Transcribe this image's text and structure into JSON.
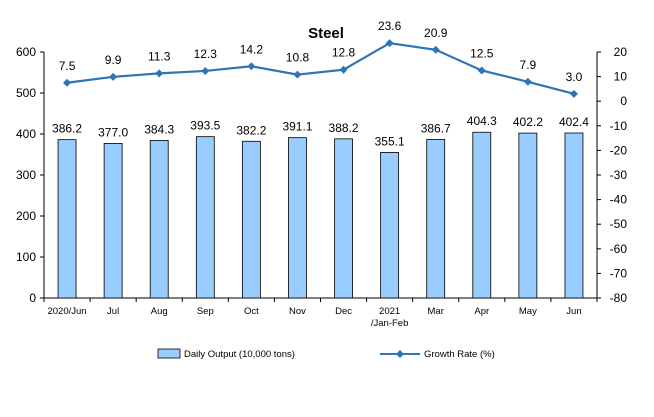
{
  "chart_data": {
    "type": "bar+line",
    "title": "Steel",
    "categories": [
      "2020/Jun",
      "Jul",
      "Aug",
      "Sep",
      "Oct",
      "Nov",
      "Dec",
      "2021\n/Jan-Feb",
      "Mar",
      "Apr",
      "May",
      "Jun"
    ],
    "series": [
      {
        "name": "Daily Output (10,000 tons)",
        "type": "bar",
        "axis": "left",
        "color": "#99ccff",
        "values": [
          386.2,
          377.0,
          384.3,
          393.5,
          382.2,
          391.1,
          388.2,
          355.1,
          386.7,
          404.3,
          402.2,
          402.4
        ],
        "labels": [
          "386.2",
          "377.0",
          "384.3",
          "393.5",
          "382.2",
          "391.1",
          "388.2",
          "355.1",
          "386.7",
          "404.3",
          "402.2",
          "402.4"
        ]
      },
      {
        "name": "Growth Rate (%)",
        "type": "line",
        "axis": "right",
        "color": "#2e75b6",
        "values": [
          7.5,
          9.9,
          11.3,
          12.3,
          14.2,
          10.8,
          12.8,
          23.6,
          20.9,
          12.5,
          7.9,
          3.0
        ],
        "labels": [
          "7.5",
          "9.9",
          "11.3",
          "12.3",
          "14.2",
          "10.8",
          "12.8",
          "23.6",
          "20.9",
          "12.5",
          "7.9",
          "3.0"
        ]
      }
    ],
    "yleft": {
      "min": 0,
      "max": 600,
      "step": 100,
      "ticks": [
        "0",
        "100",
        "200",
        "300",
        "400",
        "500",
        "600"
      ]
    },
    "yright": {
      "min": -80,
      "max": 20,
      "step": 10,
      "ticks": [
        "-80",
        "-70",
        "-60",
        "-50",
        "-40",
        "-30",
        "-20",
        "-10",
        "0",
        "10",
        "20"
      ]
    },
    "grid": false,
    "legend_position": "bottom"
  }
}
